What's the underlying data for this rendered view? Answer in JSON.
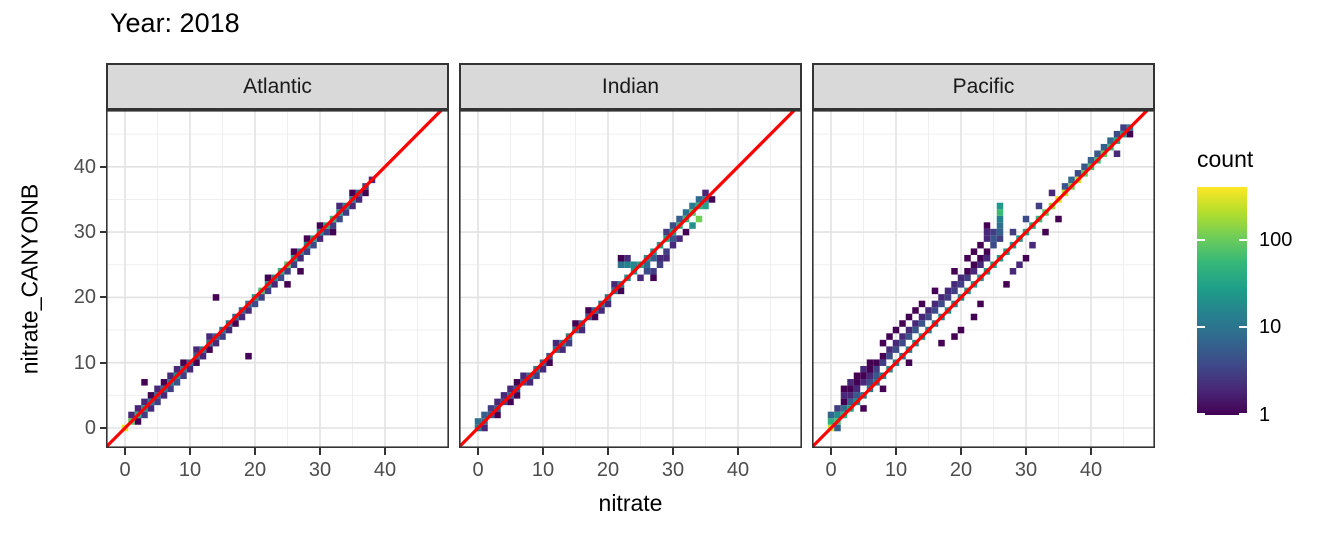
{
  "chart_data": {
    "type": "heatmap",
    "title": "Year: 2018",
    "xlabel": "nitrate",
    "ylabel": "nitrate_CANYONB",
    "x_ticks": [
      0,
      10,
      20,
      30,
      40
    ],
    "y_ticks": [
      0,
      10,
      20,
      30,
      40
    ],
    "xlim": [
      -3,
      49.8
    ],
    "ylim": [
      -3,
      48.7
    ],
    "grid": "on",
    "bin_width": 1,
    "identity_line_color": "#ff0000",
    "strip_bg": "#d9d9d9",
    "panel_border": "#333333",
    "major_grid_color": "#e2e2e2",
    "minor_grid_color": "#efefef",
    "colormap": [
      "#440154",
      "#482878",
      "#3e4a89",
      "#31688e",
      "#26828e",
      "#1f9e89",
      "#35b779",
      "#6dcd59",
      "#b4de2c",
      "#fde725"
    ],
    "legend": {
      "title": "count",
      "ticks": [
        100,
        10,
        1
      ],
      "cmax": 400,
      "scale": "log10",
      "position": "right"
    },
    "facets": [
      {
        "name": "Atlantic",
        "diag_counts": [
          320,
          90,
          45,
          22,
          12,
          8,
          10,
          14,
          22,
          14,
          9,
          7,
          11,
          9,
          7,
          9,
          12,
          8,
          7,
          9,
          28,
          70,
          24,
          18,
          45,
          80,
          28,
          14,
          22,
          32,
          18,
          40,
          55,
          26,
          18,
          12,
          8,
          4,
          2
        ],
        "extra_bins": [
          [
            1,
            2,
            2
          ],
          [
            2,
            1,
            1
          ],
          [
            2,
            3,
            2
          ],
          [
            3,
            2,
            3
          ],
          [
            3,
            4,
            2
          ],
          [
            3,
            7,
            1
          ],
          [
            4,
            3,
            2
          ],
          [
            4,
            5,
            1
          ],
          [
            5,
            4,
            3
          ],
          [
            5,
            6,
            2
          ],
          [
            6,
            5,
            2
          ],
          [
            6,
            7,
            1
          ],
          [
            7,
            6,
            3
          ],
          [
            7,
            8,
            2
          ],
          [
            8,
            7,
            5
          ],
          [
            8,
            9,
            2
          ],
          [
            9,
            8,
            3
          ],
          [
            9,
            10,
            1
          ],
          [
            10,
            9,
            2
          ],
          [
            11,
            10,
            1
          ],
          [
            11,
            12,
            2
          ],
          [
            12,
            11,
            2
          ],
          [
            13,
            12,
            1
          ],
          [
            13,
            14,
            2
          ],
          [
            14,
            13,
            2
          ],
          [
            14,
            20,
            1
          ],
          [
            15,
            14,
            3
          ],
          [
            16,
            15,
            2
          ],
          [
            17,
            16,
            1
          ],
          [
            18,
            17,
            2
          ],
          [
            19,
            11,
            1
          ],
          [
            19,
            18,
            2
          ],
          [
            20,
            19,
            4
          ],
          [
            21,
            20,
            3
          ],
          [
            22,
            21,
            3
          ],
          [
            22,
            23,
            1
          ],
          [
            23,
            22,
            2
          ],
          [
            24,
            23,
            4
          ],
          [
            25,
            24,
            3
          ],
          [
            25,
            22,
            1
          ],
          [
            26,
            25,
            3
          ],
          [
            26,
            27,
            1
          ],
          [
            27,
            26,
            2
          ],
          [
            27,
            24,
            1
          ],
          [
            28,
            27,
            3
          ],
          [
            28,
            29,
            1
          ],
          [
            29,
            28,
            4
          ],
          [
            30,
            29,
            2
          ],
          [
            30,
            31,
            1
          ],
          [
            31,
            30,
            3
          ],
          [
            32,
            31,
            3
          ],
          [
            32,
            30,
            1
          ],
          [
            33,
            32,
            4
          ],
          [
            33,
            34,
            2
          ],
          [
            34,
            33,
            3
          ],
          [
            35,
            34,
            2
          ],
          [
            35,
            36,
            1
          ],
          [
            36,
            35,
            2
          ],
          [
            37,
            36,
            1
          ]
        ]
      },
      {
        "name": "Indian",
        "diag_counts": [
          12,
          10,
          6,
          5,
          4,
          7,
          5,
          4,
          9,
          11,
          7,
          5,
          9,
          11,
          13,
          9,
          7,
          5,
          7,
          9,
          11,
          9,
          13,
          18,
          22,
          26,
          18,
          22,
          26,
          34,
          30,
          40,
          55,
          80,
          45,
          12
        ],
        "extra_bins": [
          [
            0,
            1,
            9
          ],
          [
            1,
            2,
            6
          ],
          [
            1,
            0,
            2
          ],
          [
            2,
            3,
            3
          ],
          [
            3,
            2,
            1
          ],
          [
            3,
            4,
            2
          ],
          [
            4,
            5,
            2
          ],
          [
            5,
            4,
            1
          ],
          [
            5,
            6,
            2
          ],
          [
            6,
            5,
            1
          ],
          [
            6,
            7,
            1
          ],
          [
            7,
            8,
            2
          ],
          [
            8,
            7,
            2
          ],
          [
            9,
            8,
            3
          ],
          [
            10,
            9,
            2
          ],
          [
            11,
            10,
            1
          ],
          [
            12,
            13,
            2
          ],
          [
            13,
            12,
            2
          ],
          [
            14,
            13,
            3
          ],
          [
            15,
            16,
            1
          ],
          [
            16,
            15,
            2
          ],
          [
            17,
            18,
            1
          ],
          [
            18,
            17,
            1
          ],
          [
            19,
            18,
            2
          ],
          [
            20,
            19,
            2
          ],
          [
            21,
            22,
            2
          ],
          [
            22,
            21,
            1
          ],
          [
            22,
            25,
            10
          ],
          [
            23,
            25,
            14
          ],
          [
            24,
            25,
            16
          ],
          [
            23,
            26,
            2
          ],
          [
            22,
            26,
            1
          ],
          [
            25,
            23,
            2
          ],
          [
            26,
            24,
            4
          ],
          [
            27,
            24,
            3
          ],
          [
            27,
            23,
            1
          ],
          [
            28,
            25,
            3
          ],
          [
            28,
            26,
            2
          ],
          [
            29,
            26,
            2
          ],
          [
            26,
            25,
            8
          ],
          [
            29,
            27,
            3
          ],
          [
            30,
            28,
            2
          ],
          [
            27,
            26,
            6
          ],
          [
            29,
            30,
            3
          ],
          [
            30,
            31,
            4
          ],
          [
            31,
            32,
            6
          ],
          [
            32,
            33,
            10
          ],
          [
            33,
            34,
            12
          ],
          [
            34,
            35,
            8
          ],
          [
            30,
            29,
            5
          ],
          [
            31,
            29,
            2
          ],
          [
            32,
            30,
            1
          ],
          [
            34,
            32,
            110
          ],
          [
            35,
            34,
            30
          ],
          [
            33,
            31,
            20
          ],
          [
            35,
            36,
            2
          ],
          [
            36,
            35,
            1
          ]
        ]
      },
      {
        "name": "Pacific",
        "diag_counts": [
          260,
          70,
          45,
          30,
          18,
          13,
          11,
          10,
          14,
          18,
          14,
          11,
          14,
          17,
          19,
          14,
          11,
          14,
          19,
          14,
          17,
          19,
          24,
          19,
          24,
          28,
          24,
          28,
          24,
          28,
          32,
          38,
          55,
          90,
          160,
          300,
          220,
          120,
          260,
          90,
          70,
          60,
          100,
          55,
          35,
          25,
          12
        ],
        "extra_bins": [
          [
            0,
            1,
            45
          ],
          [
            0,
            2,
            7
          ],
          [
            1,
            0,
            6
          ],
          [
            1,
            2,
            18
          ],
          [
            1,
            3,
            3
          ],
          [
            2,
            3,
            9
          ],
          [
            2,
            5,
            2
          ],
          [
            2,
            6,
            1
          ],
          [
            3,
            4,
            6
          ],
          [
            3,
            7,
            2
          ],
          [
            4,
            5,
            5
          ],
          [
            4,
            8,
            1
          ],
          [
            5,
            9,
            2
          ],
          [
            6,
            7,
            4
          ],
          [
            7,
            8,
            5
          ],
          [
            2,
            4,
            1
          ],
          [
            3,
            5,
            2
          ],
          [
            3,
            6,
            1
          ],
          [
            4,
            6,
            2
          ],
          [
            4,
            7,
            1
          ],
          [
            5,
            7,
            2
          ],
          [
            5,
            8,
            1
          ],
          [
            6,
            8,
            2
          ],
          [
            6,
            9,
            1
          ],
          [
            6,
            10,
            1
          ],
          [
            7,
            9,
            3
          ],
          [
            7,
            10,
            1
          ],
          [
            8,
            10,
            3
          ],
          [
            8,
            11,
            1
          ],
          [
            8,
            13,
            1
          ],
          [
            9,
            11,
            4
          ],
          [
            9,
            12,
            2
          ],
          [
            9,
            14,
            1
          ],
          [
            10,
            12,
            4
          ],
          [
            10,
            13,
            2
          ],
          [
            10,
            15,
            1
          ],
          [
            11,
            13,
            4
          ],
          [
            11,
            14,
            2
          ],
          [
            11,
            16,
            1
          ],
          [
            12,
            14,
            5
          ],
          [
            12,
            15,
            2
          ],
          [
            12,
            17,
            1
          ],
          [
            13,
            15,
            5
          ],
          [
            13,
            16,
            2
          ],
          [
            13,
            18,
            1
          ],
          [
            14,
            16,
            5
          ],
          [
            14,
            17,
            2
          ],
          [
            14,
            19,
            1
          ],
          [
            15,
            17,
            4
          ],
          [
            15,
            18,
            2
          ],
          [
            16,
            18,
            4
          ],
          [
            16,
            19,
            2
          ],
          [
            16,
            21,
            1
          ],
          [
            17,
            19,
            4
          ],
          [
            17,
            20,
            2
          ],
          [
            18,
            20,
            3
          ],
          [
            18,
            21,
            2
          ],
          [
            19,
            21,
            3
          ],
          [
            19,
            22,
            2
          ],
          [
            19,
            24,
            1
          ],
          [
            20,
            22,
            3
          ],
          [
            20,
            23,
            2
          ],
          [
            21,
            23,
            3
          ],
          [
            21,
            24,
            1
          ],
          [
            21,
            26,
            1
          ],
          [
            22,
            24,
            2
          ],
          [
            22,
            25,
            1
          ],
          [
            22,
            27,
            1
          ],
          [
            23,
            25,
            2
          ],
          [
            23,
            26,
            1
          ],
          [
            23,
            28,
            1
          ],
          [
            24,
            26,
            2
          ],
          [
            24,
            27,
            1
          ],
          [
            24,
            29,
            2
          ],
          [
            24,
            30,
            2
          ],
          [
            24,
            31,
            1
          ],
          [
            25,
            28,
            4
          ],
          [
            25,
            29,
            5
          ],
          [
            25,
            30,
            3
          ],
          [
            26,
            29,
            3
          ],
          [
            26,
            30,
            6
          ],
          [
            26,
            31,
            9
          ],
          [
            26,
            32,
            14
          ],
          [
            26,
            33,
            60
          ],
          [
            26,
            34,
            25
          ],
          [
            5,
            3,
            1
          ],
          [
            8,
            6,
            1
          ],
          [
            12,
            10,
            1
          ],
          [
            17,
            13,
            1
          ],
          [
            19,
            14,
            1
          ],
          [
            20,
            15,
            1
          ],
          [
            22,
            17,
            1
          ],
          [
            23,
            19,
            1
          ],
          [
            27,
            22,
            1
          ],
          [
            28,
            24,
            2
          ],
          [
            29,
            25,
            2
          ],
          [
            30,
            26,
            1
          ],
          [
            31,
            28,
            2
          ],
          [
            33,
            30,
            1
          ],
          [
            35,
            32,
            1
          ],
          [
            28,
            30,
            3
          ],
          [
            30,
            32,
            4
          ],
          [
            32,
            34,
            3
          ],
          [
            34,
            36,
            2
          ],
          [
            36,
            37,
            5
          ],
          [
            37,
            38,
            8
          ],
          [
            38,
            39,
            4
          ],
          [
            39,
            40,
            5
          ],
          [
            40,
            41,
            6
          ],
          [
            41,
            42,
            5
          ],
          [
            42,
            43,
            6
          ],
          [
            43,
            44,
            8
          ],
          [
            44,
            45,
            4
          ],
          [
            45,
            46,
            3
          ],
          [
            44,
            42,
            2
          ],
          [
            46,
            45,
            1
          ]
        ]
      }
    ]
  }
}
